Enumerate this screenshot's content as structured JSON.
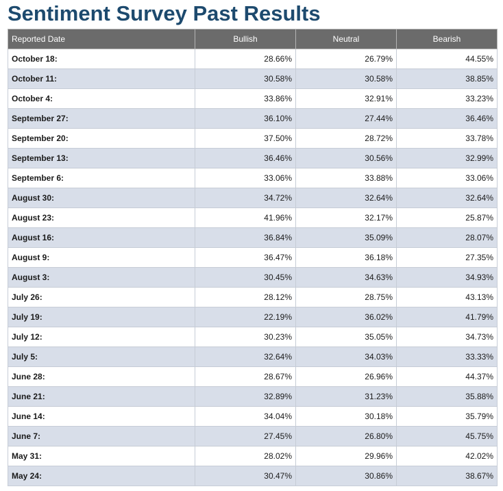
{
  "page": {
    "title": "Sentiment Survey Past Results"
  },
  "table": {
    "headers": {
      "date": "Reported Date",
      "bullish": "Bullish",
      "neutral": "Neutral",
      "bearish": "Bearish"
    },
    "rows": [
      {
        "date": "October 18:",
        "bullish": "28.66%",
        "neutral": "26.79%",
        "bearish": "44.55%"
      },
      {
        "date": "October 11:",
        "bullish": "30.58%",
        "neutral": "30.58%",
        "bearish": "38.85%"
      },
      {
        "date": "October 4:",
        "bullish": "33.86%",
        "neutral": "32.91%",
        "bearish": "33.23%"
      },
      {
        "date": "September 27:",
        "bullish": "36.10%",
        "neutral": "27.44%",
        "bearish": "36.46%"
      },
      {
        "date": "September 20:",
        "bullish": "37.50%",
        "neutral": "28.72%",
        "bearish": "33.78%"
      },
      {
        "date": "September 13:",
        "bullish": "36.46%",
        "neutral": "30.56%",
        "bearish": "32.99%"
      },
      {
        "date": "September 6:",
        "bullish": "33.06%",
        "neutral": "33.88%",
        "bearish": "33.06%"
      },
      {
        "date": "August 30:",
        "bullish": "34.72%",
        "neutral": "32.64%",
        "bearish": "32.64%"
      },
      {
        "date": "August 23:",
        "bullish": "41.96%",
        "neutral": "32.17%",
        "bearish": "25.87%"
      },
      {
        "date": "August 16:",
        "bullish": "36.84%",
        "neutral": "35.09%",
        "bearish": "28.07%"
      },
      {
        "date": "August 9:",
        "bullish": "36.47%",
        "neutral": "36.18%",
        "bearish": "27.35%"
      },
      {
        "date": "August 3:",
        "bullish": "30.45%",
        "neutral": "34.63%",
        "bearish": "34.93%"
      },
      {
        "date": "July 26:",
        "bullish": "28.12%",
        "neutral": "28.75%",
        "bearish": "43.13%"
      },
      {
        "date": "July 19:",
        "bullish": "22.19%",
        "neutral": "36.02%",
        "bearish": "41.79%"
      },
      {
        "date": "July 12:",
        "bullish": "30.23%",
        "neutral": "35.05%",
        "bearish": "34.73%"
      },
      {
        "date": "July 5:",
        "bullish": "32.64%",
        "neutral": "34.03%",
        "bearish": "33.33%"
      },
      {
        "date": "June 28:",
        "bullish": "28.67%",
        "neutral": "26.96%",
        "bearish": "44.37%"
      },
      {
        "date": "June 21:",
        "bullish": "32.89%",
        "neutral": "31.23%",
        "bearish": "35.88%"
      },
      {
        "date": "June 14:",
        "bullish": "34.04%",
        "neutral": "30.18%",
        "bearish": "35.79%"
      },
      {
        "date": "June 7:",
        "bullish": "27.45%",
        "neutral": "26.80%",
        "bearish": "45.75%"
      },
      {
        "date": "May 31:",
        "bullish": "28.02%",
        "neutral": "29.96%",
        "bearish": "42.02%"
      },
      {
        "date": "May 24:",
        "bullish": "30.47%",
        "neutral": "30.86%",
        "bearish": "38.67%"
      }
    ]
  },
  "colors": {
    "title": "#1d4a6e",
    "header_background": "#6b6b6b",
    "header_text": "#ffffff",
    "row_white": "#ffffff",
    "row_shaded": "#d8dee9",
    "border": "#c6ccd6"
  }
}
